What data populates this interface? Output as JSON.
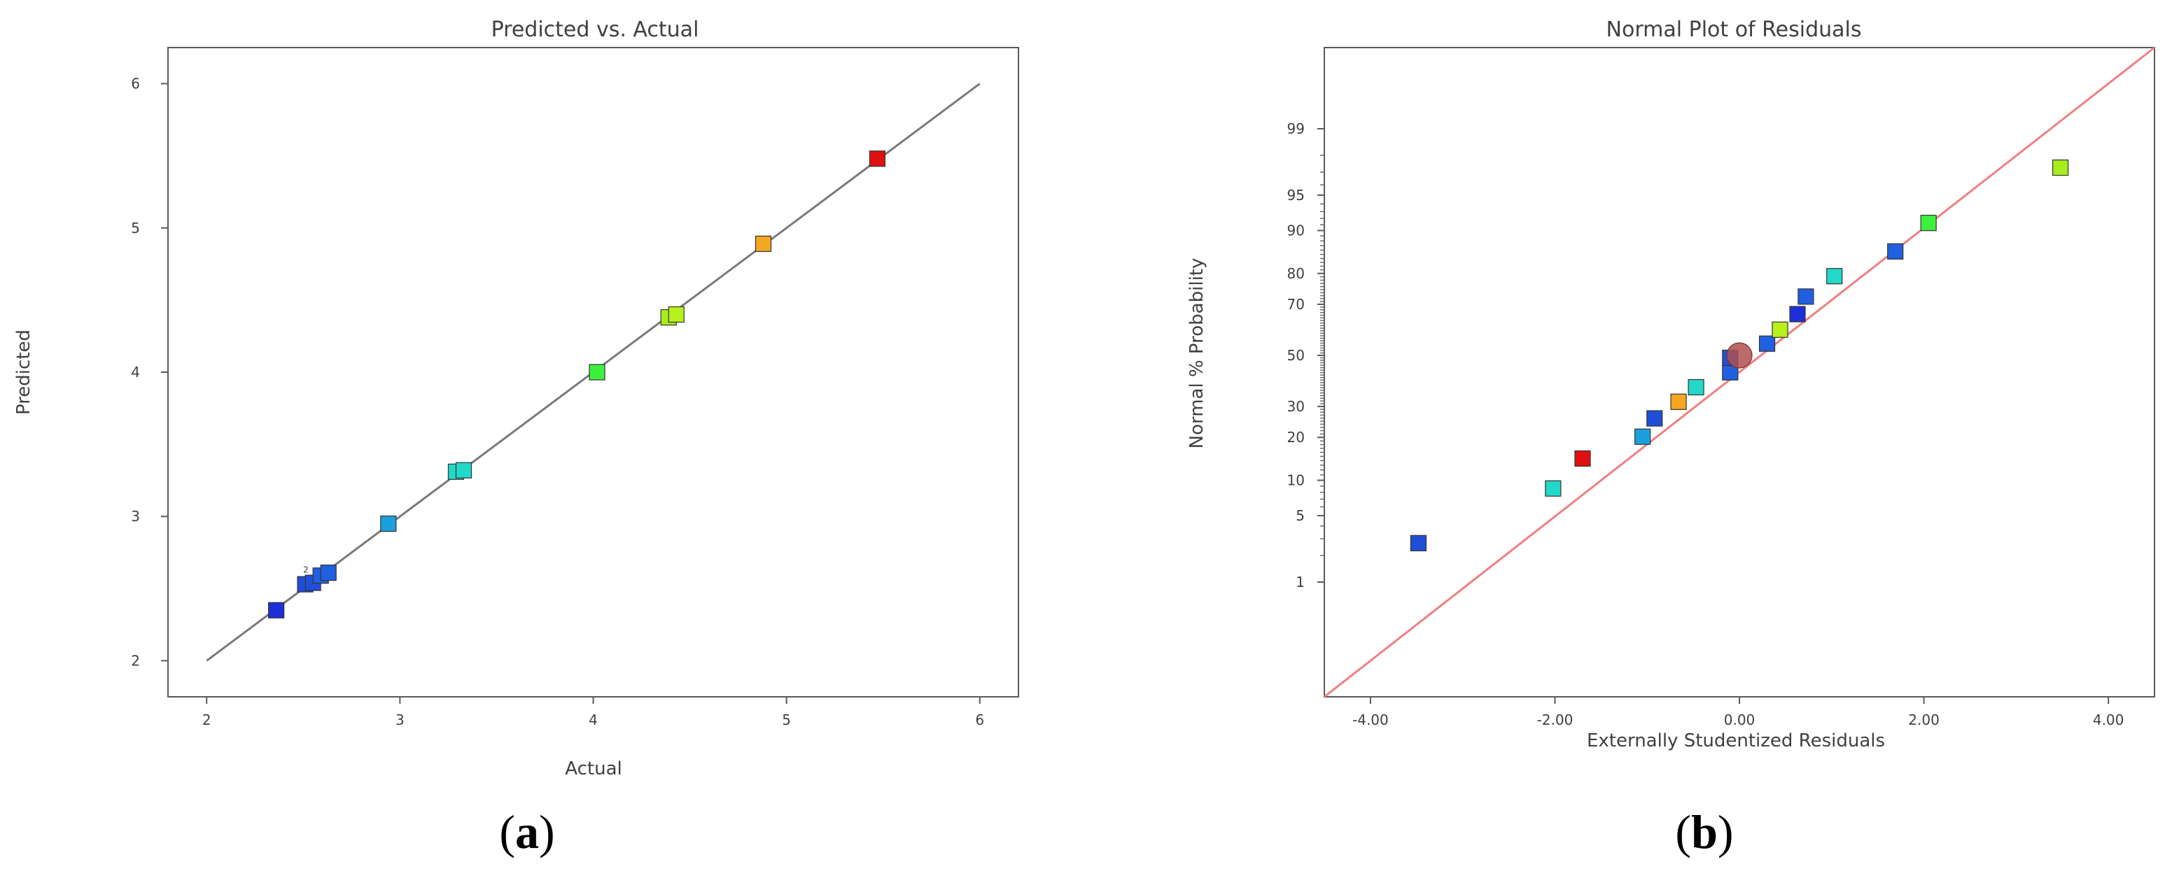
{
  "chart_data": [
    {
      "panel": "a",
      "panel_label": "(a)",
      "type": "scatter",
      "title": "Predicted vs. Actual",
      "xlabel": "Actual",
      "ylabel": "Predicted",
      "xlim": [
        1.8,
        6.2
      ],
      "ylim": [
        1.75,
        6.25
      ],
      "xticks": [
        2,
        3,
        4,
        5,
        6
      ],
      "yticks": [
        2,
        3,
        4,
        5,
        6
      ],
      "grid": false,
      "reference_line": {
        "from": [
          2,
          2
        ],
        "to": [
          6,
          6
        ],
        "color": "#7a7a7a"
      },
      "points": [
        {
          "x": 2.36,
          "y": 2.35,
          "color": "#1f2fd8"
        },
        {
          "x": 2.51,
          "y": 2.53,
          "color": "#1f4fd8"
        },
        {
          "x": 2.55,
          "y": 2.54,
          "color": "#1f4fd8"
        },
        {
          "x": 2.59,
          "y": 2.59,
          "color": "#2060e0"
        },
        {
          "x": 2.63,
          "y": 2.61,
          "color": "#2060e0"
        },
        {
          "x": 2.94,
          "y": 2.95,
          "color": "#1aa0dc"
        },
        {
          "x": 3.29,
          "y": 3.31,
          "color": "#22d8c8"
        },
        {
          "x": 3.33,
          "y": 3.32,
          "color": "#22d8c8"
        },
        {
          "x": 4.02,
          "y": 4.0,
          "color": "#3ef03e"
        },
        {
          "x": 4.39,
          "y": 4.38,
          "color": "#a8ee1c"
        },
        {
          "x": 4.43,
          "y": 4.4,
          "color": "#b8f01c"
        },
        {
          "x": 4.88,
          "y": 4.89,
          "color": "#f5a623"
        },
        {
          "x": 5.47,
          "y": 5.48,
          "color": "#e01010"
        }
      ],
      "annotation": {
        "text": "2",
        "x": 2.55,
        "y": 2.62
      }
    },
    {
      "panel": "b",
      "panel_label": "(b)",
      "type": "scatter",
      "title": "Normal Plot of Residuals",
      "xlabel": "Externally Studentized Residuals",
      "ylabel": "Normal % Probability",
      "xlim": [
        -4.5,
        4.5
      ],
      "y_scale": "normal probability",
      "xticks": [
        "-4.00",
        "-2.00",
        "0.00",
        "2.00",
        "4.00"
      ],
      "yticks": [
        1,
        5,
        10,
        20,
        30,
        50,
        70,
        80,
        90,
        95,
        99
      ],
      "grid": false,
      "reference_line": {
        "x_at_0": 0,
        "x_per_z": 1,
        "color": "#f08080"
      },
      "points": [
        {
          "x": -3.48,
          "y": 2.7,
          "color": "#1f4fd8"
        },
        {
          "x": -2.02,
          "y": 8.6,
          "color": "#22d8c8"
        },
        {
          "x": -1.7,
          "y": 14.5,
          "color": "#e01010"
        },
        {
          "x": -1.05,
          "y": 20.2,
          "color": "#1aa0dc"
        },
        {
          "x": -0.92,
          "y": 25.9,
          "color": "#1f4fd8"
        },
        {
          "x": -0.66,
          "y": 31.7,
          "color": "#f5a623"
        },
        {
          "x": -0.47,
          "y": 37.2,
          "color": "#22d8c8"
        },
        {
          "x": -0.1,
          "y": 43.1,
          "color": "#2060e0"
        },
        {
          "x": -0.1,
          "y": 49.0,
          "color": "#1f4fd8"
        },
        {
          "x": 0.3,
          "y": 54.8,
          "color": "#2060e0"
        },
        {
          "x": 0.44,
          "y": 60.4,
          "color": "#b8f01c"
        },
        {
          "x": 0.63,
          "y": 66.4,
          "color": "#1f2fd8"
        },
        {
          "x": 0.72,
          "y": 72.7,
          "color": "#2060e0"
        },
        {
          "x": 1.03,
          "y": 79.2,
          "color": "#22d8c8"
        },
        {
          "x": 1.69,
          "y": 85.7,
          "color": "#2060e0"
        },
        {
          "x": 2.05,
          "y": 91.3,
          "color": "#3ef03e"
        },
        {
          "x": 3.48,
          "y": 97.3,
          "color": "#a8ee1c"
        }
      ],
      "center_marker": {
        "x": 0.0,
        "y": 50.0,
        "color": "#b05050"
      }
    }
  ]
}
